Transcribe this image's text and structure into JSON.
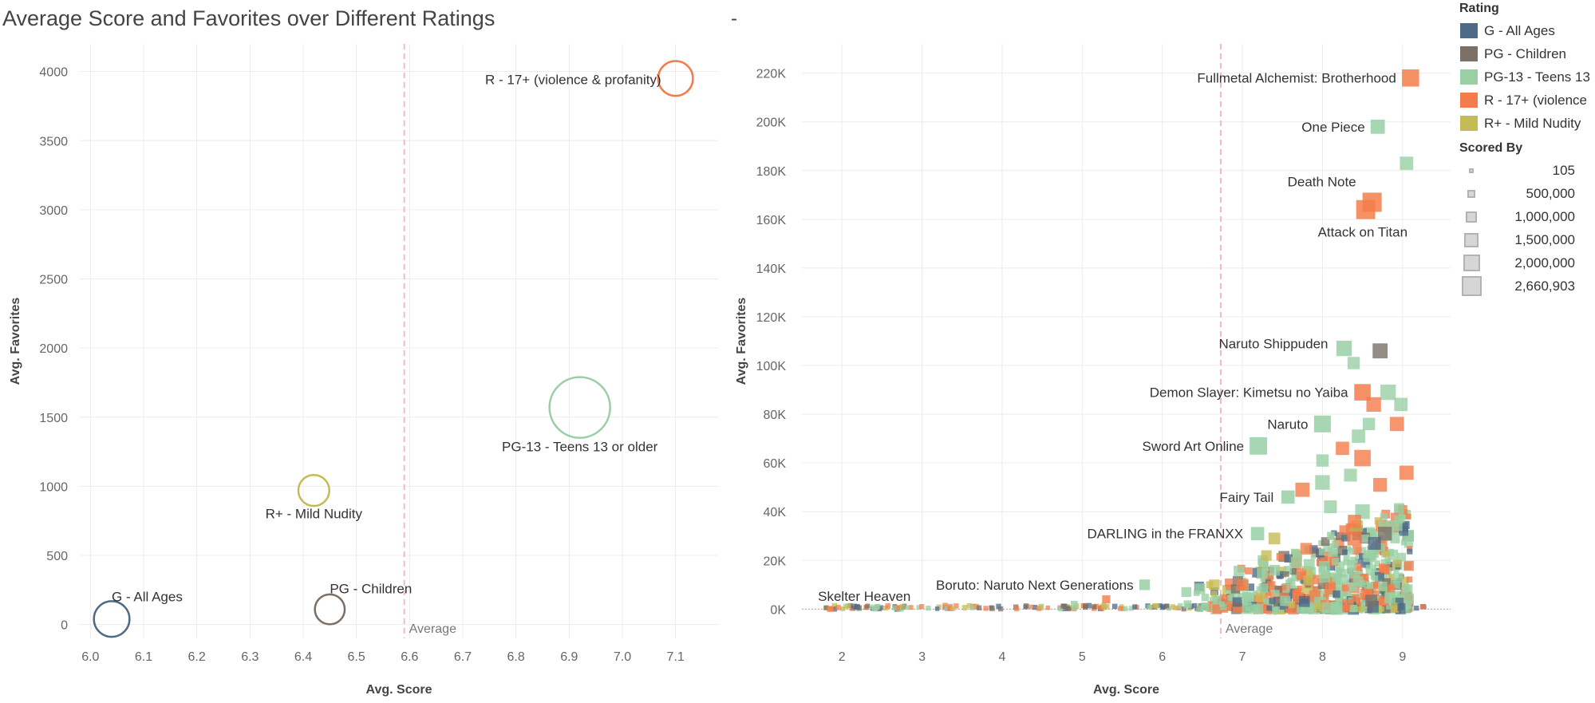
{
  "page": {
    "title": "Average Score and Favorites over Different Ratings",
    "separator": "-"
  },
  "colors": {
    "G - All Ages": "#4e6a88",
    "PG - Children": "#7b6f66",
    "PG-13 - Teens 13 or older": "#98cfa4",
    "R - 17+ (violence & profanity)": "#f47c4a",
    "R+ - Mild Nudity": "#c5bb55",
    "reference_line": "#f3b8c4",
    "grid": "#ececec"
  },
  "legend": {
    "rating_title": "Rating",
    "ratings": [
      {
        "label": "G - All Ages",
        "color": "#4e6a88"
      },
      {
        "label": "PG - Children",
        "color": "#7b6f66"
      },
      {
        "label": "PG-13 - Teens 13",
        "color": "#98cfa4"
      },
      {
        "label": "R - 17+ (violence",
        "color": "#f47c4a"
      },
      {
        "label": "R+ - Mild Nudity",
        "color": "#c5bb55"
      }
    ],
    "size_title": "Scored By",
    "sizes": [
      "105",
      "500,000",
      "1,000,000",
      "1,500,000",
      "2,000,000",
      "2,660,903"
    ]
  },
  "chart_data": [
    {
      "type": "scatter",
      "xlabel": "Avg. Score",
      "ylabel": "Avg. Favorites",
      "xlim": [
        5.98,
        7.18
      ],
      "ylim": [
        -100,
        4200
      ],
      "x_ticks": [
        "6.0",
        "6.1",
        "6.2",
        "6.3",
        "6.4",
        "6.5",
        "6.6",
        "6.7",
        "6.8",
        "6.9",
        "7.0",
        "7.1"
      ],
      "y_ticks": [
        "0",
        "500",
        "1000",
        "1500",
        "2000",
        "2500",
        "3000",
        "3500",
        "4000"
      ],
      "reference_line": {
        "label": "Average",
        "x": 6.59
      },
      "points": [
        {
          "label": "G - All Ages",
          "x": 6.04,
          "y": 40,
          "scored_by": 60000
        },
        {
          "label": "PG - Children",
          "x": 6.45,
          "y": 110,
          "scored_by": 30000
        },
        {
          "label": "R+ - Mild Nudity",
          "x": 6.42,
          "y": 970,
          "scored_by": 35000
        },
        {
          "label": "PG-13 - Teens 13 or older",
          "x": 6.92,
          "y": 1570,
          "scored_by": 310000
        },
        {
          "label": "R - 17+ (violence & profanity)",
          "x": 7.1,
          "y": 3950,
          "scored_by": 55000
        }
      ]
    },
    {
      "type": "scatter",
      "xlabel": "Avg. Score",
      "ylabel": "Avg. Favorites",
      "xlim": [
        1.5,
        9.6
      ],
      "ylim": [
        -12000,
        232000
      ],
      "x_ticks": [
        "2",
        "3",
        "4",
        "5",
        "6",
        "7",
        "8",
        "9"
      ],
      "y_ticks": [
        "0K",
        "20K",
        "40K",
        "60K",
        "80K",
        "100K",
        "120K",
        "140K",
        "160K",
        "180K",
        "200K",
        "220K"
      ],
      "reference_line": {
        "label": "Average",
        "x": 6.73
      },
      "labeled_points": [
        {
          "label": "Fullmetal Alchemist: Brotherhood",
          "x": 9.1,
          "y": 218000,
          "rating": "R - 17+ (violence & profanity)",
          "scored_by": 2000000
        },
        {
          "label": "One Piece",
          "x": 8.69,
          "y": 198000,
          "rating": "PG-13 - Teens 13 or older",
          "scored_by": 1200000
        },
        {
          "label": "Death Note",
          "x": 8.62,
          "y": 167000,
          "rating": "R - 17+ (violence & profanity)",
          "scored_by": 2660903
        },
        {
          "label": "Attack on Titan",
          "x": 8.54,
          "y": 164000,
          "rating": "R - 17+ (violence & profanity)",
          "scored_by": 2600000
        },
        {
          "label": "Naruto Shippuden",
          "x": 8.27,
          "y": 107000,
          "rating": "PG-13 - Teens 13 or older",
          "scored_by": 1500000
        },
        {
          "label": "Demon Slayer: Kimetsu no Yaiba",
          "x": 8.5,
          "y": 89000,
          "rating": "R - 17+ (violence & profanity)",
          "scored_by": 1800000
        },
        {
          "label": "Naruto",
          "x": 8.0,
          "y": 76000,
          "rating": "PG-13 - Teens 13 or older",
          "scored_by": 1900000
        },
        {
          "label": "Sword Art Online",
          "x": 7.2,
          "y": 67000,
          "rating": "PG-13 - Teens 13 or older",
          "scored_by": 2100000
        },
        {
          "label": "Fairy Tail",
          "x": 7.57,
          "y": 46000,
          "rating": "PG-13 - Teens 13 or older",
          "scored_by": 1000000
        },
        {
          "label": "DARLING in the FRANXX",
          "x": 7.19,
          "y": 31000,
          "rating": "PG-13 - Teens 13 or older",
          "scored_by": 1000000
        },
        {
          "label": "Boruto: Naruto Next Generations",
          "x": 5.78,
          "y": 10000,
          "rating": "PG-13 - Teens 13 or older",
          "scored_by": 500000
        },
        {
          "label": "Skelter Heaven",
          "x": 1.85,
          "y": 100,
          "rating": "R - 17+ (violence & profanity)",
          "scored_by": 40000
        }
      ],
      "other_points": [
        {
          "x": 9.05,
          "y": 183000,
          "rating": "PG-13 - Teens 13 or older",
          "scored_by": 1000000
        },
        {
          "x": 8.39,
          "y": 101000,
          "rating": "PG-13 - Teens 13 or older",
          "scored_by": 800000
        },
        {
          "x": 8.72,
          "y": 106000,
          "rating": "PG - Children",
          "scored_by": 1400000
        },
        {
          "x": 8.82,
          "y": 89000,
          "rating": "PG-13 - Teens 13 or older",
          "scored_by": 1500000
        },
        {
          "x": 8.64,
          "y": 84000,
          "rating": "R - 17+ (violence & profanity)",
          "scored_by": 1300000
        },
        {
          "x": 8.98,
          "y": 84000,
          "rating": "PG-13 - Teens 13 or older",
          "scored_by": 1000000
        },
        {
          "x": 8.93,
          "y": 76000,
          "rating": "R - 17+ (violence & profanity)",
          "scored_by": 1200000
        },
        {
          "x": 8.58,
          "y": 76000,
          "rating": "PG-13 - Teens 13 or older",
          "scored_by": 800000
        },
        {
          "x": 8.45,
          "y": 71000,
          "rating": "PG-13 - Teens 13 or older",
          "scored_by": 1000000
        },
        {
          "x": 8.25,
          "y": 66000,
          "rating": "R - 17+ (violence & profanity)",
          "scored_by": 1000000
        },
        {
          "x": 8.5,
          "y": 62000,
          "rating": "R - 17+ (violence & profanity)",
          "scored_by": 1800000
        },
        {
          "x": 8.0,
          "y": 61000,
          "rating": "PG-13 - Teens 13 or older",
          "scored_by": 800000
        },
        {
          "x": 9.05,
          "y": 56000,
          "rating": "R - 17+ (violence & profanity)",
          "scored_by": 1200000
        },
        {
          "x": 8.35,
          "y": 55000,
          "rating": "PG-13 - Teens 13 or older",
          "scored_by": 900000
        },
        {
          "x": 7.75,
          "y": 49000,
          "rating": "R - 17+ (violence & profanity)",
          "scored_by": 1200000
        },
        {
          "x": 8.0,
          "y": 52000,
          "rating": "PG-13 - Teens 13 or older",
          "scored_by": 1300000
        },
        {
          "x": 8.72,
          "y": 51000,
          "rating": "R - 17+ (violence & profanity)",
          "scored_by": 1100000
        },
        {
          "x": 8.1,
          "y": 42000,
          "rating": "PG-13 - Teens 13 or older",
          "scored_by": 900000
        },
        {
          "x": 8.5,
          "y": 40000,
          "rating": "PG-13 - Teens 13 or older",
          "scored_by": 1300000
        },
        {
          "x": 8.4,
          "y": 36000,
          "rating": "R - 17+ (violence & profanity)",
          "scored_by": 1000000
        },
        {
          "x": 8.78,
          "y": 31000,
          "rating": "PG - Children",
          "scored_by": 1100000
        },
        {
          "x": 8.4,
          "y": 29000,
          "rating": "R - 17+ (violence & profanity)",
          "scored_by": 1200000
        },
        {
          "x": 8.65,
          "y": 27000,
          "rating": "G - All Ages",
          "scored_by": 900000
        },
        {
          "x": 7.4,
          "y": 29000,
          "rating": "R+ - Mild Nudity",
          "scored_by": 700000
        },
        {
          "x": 7.3,
          "y": 22000,
          "rating": "R+ - Mild Nudity",
          "scored_by": 500000
        },
        {
          "x": 7.0,
          "y": 10000,
          "rating": "R - 17+ (violence & profanity)",
          "scored_by": 700000
        },
        {
          "x": 6.65,
          "y": 10000,
          "rating": "R+ - Mild Nudity",
          "scored_by": 500000
        },
        {
          "x": 6.3,
          "y": 7000,
          "rating": "PG-13 - Teens 13 or older",
          "scored_by": 400000
        },
        {
          "x": 5.3,
          "y": 4000,
          "rating": "R - 17+ (violence & profanity)",
          "scored_by": 200000
        },
        {
          "x": 4.9,
          "y": 2000,
          "rating": "PG-13 - Teens 13 or older",
          "scored_by": 100000
        }
      ],
      "dense_cluster": {
        "x_range": [
          6.3,
          9.1
        ],
        "y_range": [
          0,
          40000
        ],
        "ratings": [
          "PG-13 - Teens 13 or older",
          "R - 17+ (violence & profanity)",
          "G - All Ages",
          "PG - Children",
          "R+ - Mild Nudity"
        ],
        "baseline_x_range": [
          1.8,
          9.3
        ]
      }
    }
  ]
}
